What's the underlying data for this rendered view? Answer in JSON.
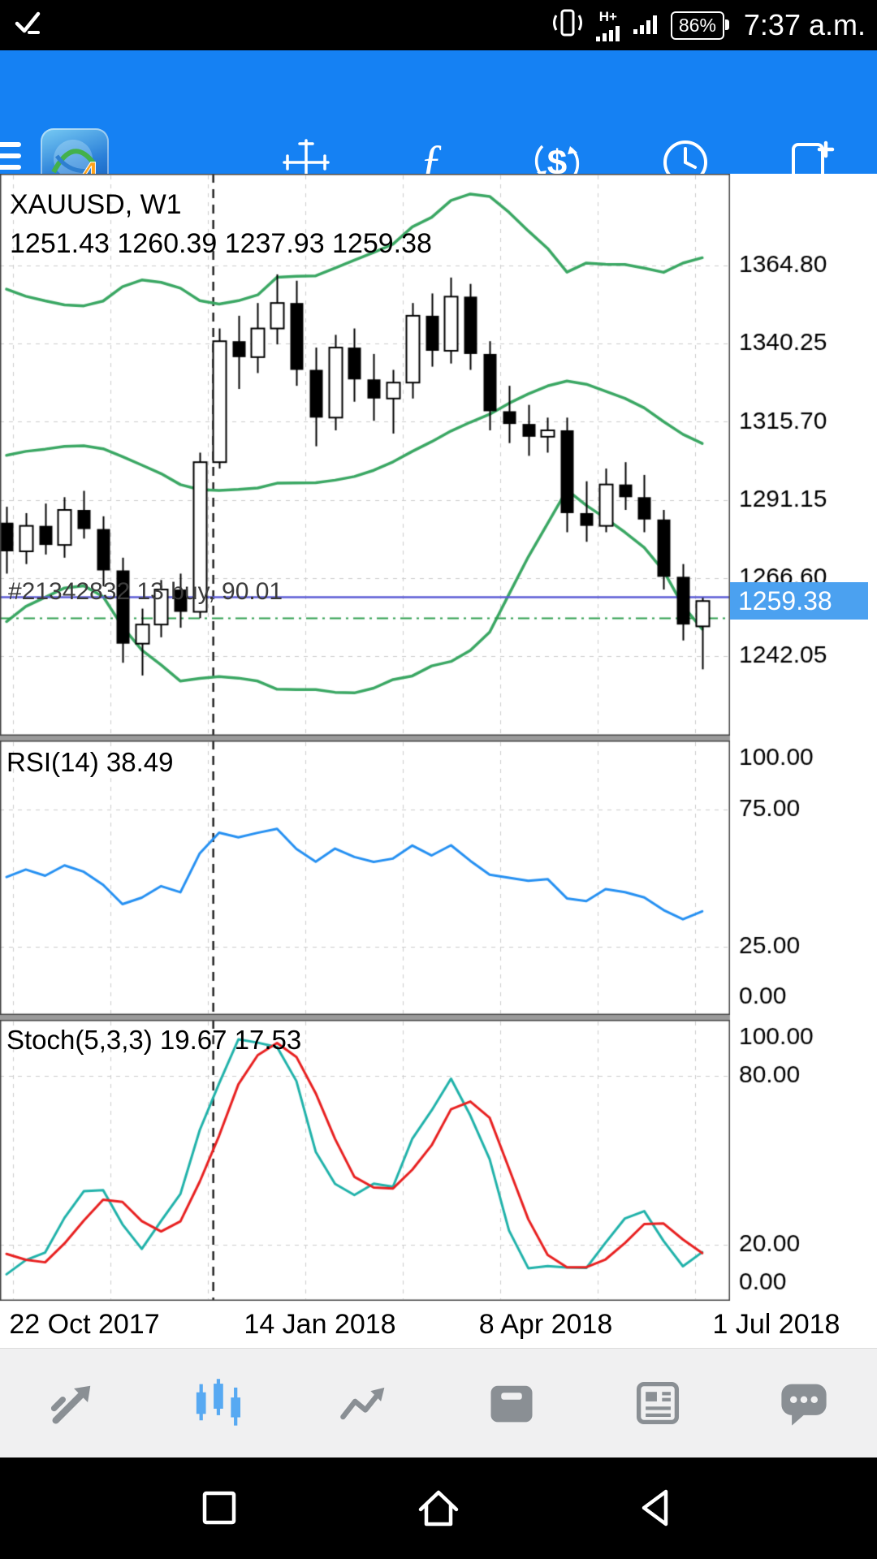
{
  "status_bar": {
    "time": "7:37 a.m.",
    "battery": "86%",
    "network": "H+"
  },
  "toolbar": {
    "function_glyph": "ƒ",
    "dollar_glyph": "$"
  },
  "chart": {
    "symbol_period": "XAUUSD, W1",
    "ohlc_line": "1251.43 1260.39 1237.93 1259.38",
    "rsi_title": "RSI(14) 38.49",
    "stoch_title": "Stoch(5,3,3) 19.67 17.53",
    "position_label": "#21342832 13 buy, 90.01",
    "current_price": "1259.38"
  },
  "chart_data": {
    "type": "candlestick",
    "symbol": "XAUUSD",
    "period": "W1",
    "date_labels": [
      "22 Oct 2017",
      "14 Jan 2018",
      "8 Apr 2018",
      "1 Jul 2018"
    ],
    "price_axis": [
      1364.8,
      1340.25,
      1315.7,
      1291.15,
      1266.6,
      1242.05
    ],
    "price_range": [
      1217.1,
      1393.6
    ],
    "rsi_axis": [
      100,
      75,
      25,
      0
    ],
    "rsi_levels": [
      75,
      25
    ],
    "stoch_axis": [
      100,
      80,
      20,
      0
    ],
    "stoch_levels": [
      80,
      20
    ],
    "current_price": 1259.38,
    "position_line_price": 1260.7,
    "bid_line_price": 1254.2,
    "vline_candle_index": 10.7,
    "indicators": {
      "bollinger": {
        "period": 20,
        "deviation": 2
      },
      "rsi": {
        "period": 14,
        "last": 38.49
      },
      "stochastic": {
        "k": 5,
        "d": 3,
        "slowing": 3,
        "last_k": 19.67,
        "last_d": 17.53
      }
    },
    "colors": {
      "bands": "#3aa763",
      "rsi": "#2590f2",
      "stoch_k": "#20b2aa",
      "stoch_d": "#e82020",
      "position_line": "#5b5bd5",
      "bid_line": "#2e9e4f",
      "grid": "#cdcdcd",
      "bull": "#ffffff",
      "bear": "#000000"
    },
    "history_ohlc": [
      [
        1255,
        1262,
        1250,
        1258
      ],
      [
        1258,
        1266,
        1254,
        1263
      ],
      [
        1263,
        1274,
        1260,
        1271
      ],
      [
        1271,
        1281,
        1268,
        1278
      ],
      [
        1278,
        1291,
        1275,
        1288
      ],
      [
        1288,
        1299,
        1284,
        1295
      ],
      [
        1295,
        1308,
        1292,
        1305
      ],
      [
        1305,
        1320,
        1302,
        1317
      ],
      [
        1317,
        1329,
        1313,
        1325
      ],
      [
        1325,
        1338,
        1321,
        1334
      ],
      [
        1334,
        1349,
        1330,
        1346
      ],
      [
        1346,
        1352,
        1326,
        1330
      ],
      [
        1330,
        1340,
        1322,
        1336
      ],
      [
        1336,
        1341,
        1318,
        1323
      ],
      [
        1323,
        1334,
        1318,
        1330
      ],
      [
        1330,
        1334,
        1312,
        1316
      ],
      [
        1316,
        1327,
        1310,
        1323
      ],
      [
        1323,
        1326,
        1302,
        1306
      ],
      [
        1306,
        1310,
        1280,
        1284
      ]
    ],
    "candles": [
      [
        1284,
        1289,
        1268,
        1275
      ],
      [
        1275,
        1287,
        1271,
        1283
      ],
      [
        1283,
        1290,
        1274,
        1277
      ],
      [
        1277,
        1292,
        1273,
        1288
      ],
      [
        1288,
        1294,
        1279,
        1282
      ],
      [
        1282,
        1286,
        1264,
        1269
      ],
      [
        1269,
        1273,
        1240,
        1246
      ],
      [
        1246,
        1257,
        1236,
        1252
      ],
      [
        1252,
        1266,
        1248,
        1263
      ],
      [
        1263,
        1268,
        1251,
        1256
      ],
      [
        1256,
        1306,
        1254,
        1303
      ],
      [
        1303,
        1345,
        1301,
        1341
      ],
      [
        1341,
        1349,
        1326,
        1336
      ],
      [
        1336,
        1353,
        1331,
        1345
      ],
      [
        1345,
        1362,
        1340,
        1353
      ],
      [
        1353,
        1360,
        1327,
        1332
      ],
      [
        1332,
        1339,
        1308,
        1317
      ],
      [
        1317,
        1343,
        1313,
        1339
      ],
      [
        1339,
        1345,
        1322,
        1329
      ],
      [
        1329,
        1337,
        1316,
        1323
      ],
      [
        1323,
        1332,
        1312,
        1328
      ],
      [
        1328,
        1353,
        1323,
        1349
      ],
      [
        1349,
        1356,
        1333,
        1338
      ],
      [
        1338,
        1361,
        1334,
        1355
      ],
      [
        1355,
        1359,
        1332,
        1337
      ],
      [
        1337,
        1341,
        1313,
        1319
      ],
      [
        1319,
        1327,
        1309,
        1315
      ],
      [
        1315,
        1321,
        1305,
        1311
      ],
      [
        1311,
        1317,
        1306,
        1313
      ],
      [
        1313,
        1317,
        1281,
        1287
      ],
      [
        1287,
        1297,
        1278,
        1283
      ],
      [
        1283,
        1301,
        1281,
        1296
      ],
      [
        1296,
        1303,
        1288,
        1292
      ],
      [
        1292,
        1299,
        1281,
        1285
      ],
      [
        1285,
        1288,
        1263,
        1267
      ],
      [
        1267,
        1271,
        1247,
        1252
      ],
      [
        1251.43,
        1260.39,
        1237.93,
        1259.38
      ]
    ]
  },
  "bottom_nav": {
    "active": "charts",
    "items": [
      "quotes",
      "charts",
      "trade",
      "history",
      "news",
      "chat"
    ]
  }
}
